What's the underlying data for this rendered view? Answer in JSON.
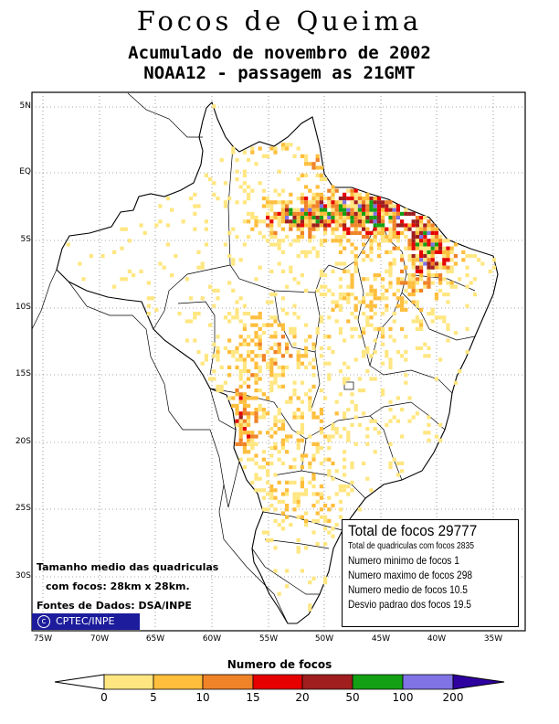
{
  "title": "Focos de Queima",
  "subtitle1": "Acumulado de novembro de 2002",
  "subtitle2": "NOAA12 - passagem as 21GMT",
  "map": {
    "lat_labels": [
      "5N",
      "EQ",
      "5S",
      "10S",
      "15S",
      "20S",
      "25S",
      "30S"
    ],
    "lon_labels": [
      "75W",
      "70W",
      "65W",
      "60W",
      "55W",
      "50W",
      "45W",
      "40W",
      "35W"
    ]
  },
  "stats": {
    "total": "Total de focos 29777",
    "quadriculas": "Total de quadriculas com focos 2835",
    "minimo": "Numero minimo de focos 1",
    "maximo": "Numero maximo de focos 298",
    "medio": "Numero medio de focos 10.5",
    "desvio": "Desvio padrao dos focos 19.5"
  },
  "notes": {
    "tamanho1": "Tamanho medio das quadriculas",
    "tamanho2": "com focos: 28km x 28km.",
    "fontes": "Fontes de Dados: DSA/INPE",
    "logo": "CPTEC/INPE",
    "logo_symbol": "c"
  },
  "legend": {
    "title": "Numero de focos",
    "ticks": [
      "0",
      "5",
      "10",
      "15",
      "20",
      "50",
      "100",
      "200"
    ],
    "colors": [
      "#ffe680",
      "#ffbe3c",
      "#f08228",
      "#e60000",
      "#a01e1e",
      "#14a014",
      "#7f73e6",
      "#2f00a0"
    ]
  }
}
